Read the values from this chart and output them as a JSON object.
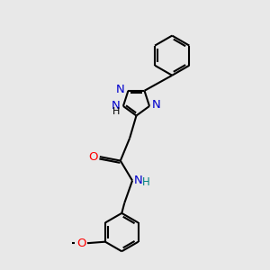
{
  "background_color": "#e8e8e8",
  "bond_color": "#000000",
  "nitrogen_color": "#0000cd",
  "oxygen_color": "#ff0000",
  "nh_color": "#008080",
  "label_fontsize": 9.5,
  "bond_lw": 1.5,
  "figsize": [
    3.0,
    3.0
  ],
  "dpi": 100,
  "xlim": [
    0,
    10
  ],
  "ylim": [
    0,
    10
  ]
}
